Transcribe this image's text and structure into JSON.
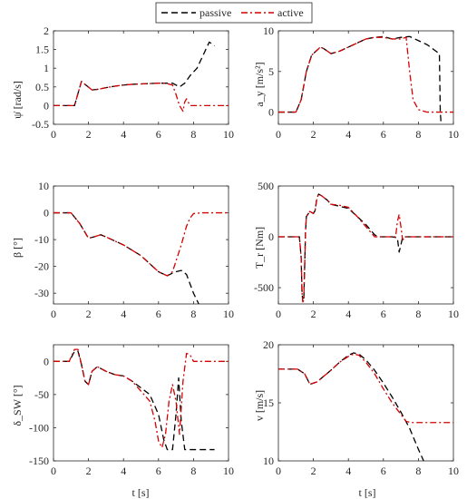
{
  "legend": {
    "entries": [
      {
        "label": "passive",
        "color": "#000000",
        "dash": "dashed"
      },
      {
        "label": "active",
        "color": "#d40000",
        "dash": "dashdot"
      }
    ]
  },
  "chart_data": [
    {
      "id": "yaw-rate",
      "type": "line",
      "ylabel": "ψ̇ [rad/s]",
      "xlabel": "",
      "xlim": [
        0,
        10
      ],
      "ylim": [
        -0.5,
        2
      ],
      "xticks": [
        0,
        2,
        4,
        6,
        8,
        10
      ],
      "yticks": [
        -0.5,
        0,
        0.5,
        1,
        1.5,
        2
      ],
      "series": [
        {
          "name": "passive",
          "x": [
            0,
            1.2,
            1.6,
            1.85,
            2.2,
            2.6,
            3,
            3.5,
            4,
            4.5,
            5,
            5.5,
            6,
            6.4,
            6.8,
            7.2,
            7.5,
            7.8,
            8.2,
            8.6,
            8.9,
            9.2
          ],
          "y": [
            0,
            0,
            0.65,
            0.55,
            0.42,
            0.44,
            0.48,
            0.52,
            0.55,
            0.57,
            0.58,
            0.59,
            0.6,
            0.6,
            0.6,
            0.5,
            0.6,
            0.8,
            1.0,
            1.4,
            1.7,
            1.6
          ]
        },
        {
          "name": "active",
          "x": [
            0,
            1.2,
            1.6,
            1.85,
            2.2,
            2.6,
            3,
            3.5,
            4,
            4.5,
            5,
            5.5,
            6,
            6.4,
            6.8,
            7.0,
            7.2,
            7.4,
            7.5,
            7.6,
            7.8,
            8,
            10
          ],
          "y": [
            0,
            0,
            0.65,
            0.55,
            0.42,
            0.44,
            0.48,
            0.52,
            0.55,
            0.57,
            0.58,
            0.59,
            0.6,
            0.6,
            0.55,
            0.3,
            0,
            -0.15,
            0.1,
            0.18,
            0,
            0,
            0
          ]
        }
      ]
    },
    {
      "id": "lat-accel",
      "type": "line",
      "ylabel": "a_y [m/s²]",
      "xlabel": "",
      "xlim": [
        0,
        10
      ],
      "ylim": [
        -1.5,
        10
      ],
      "xticks": [
        0,
        2,
        4,
        6,
        8,
        10
      ],
      "yticks": [
        0,
        5,
        10
      ],
      "series": [
        {
          "name": "passive",
          "x": [
            0,
            1,
            1.3,
            1.6,
            1.9,
            2.2,
            2.4,
            2.6,
            3,
            3.5,
            4,
            4.5,
            5,
            5.5,
            6,
            6.5,
            7,
            7.5,
            8,
            8.5,
            9,
            9.2,
            9.25,
            9.3
          ],
          "y": [
            0,
            0,
            1.5,
            5,
            7,
            7.6,
            8,
            7.8,
            7.2,
            7.5,
            8,
            8.5,
            9,
            9.2,
            9.3,
            9,
            9.2,
            9.3,
            8.8,
            8.3,
            7.5,
            7.2,
            0,
            -1.5
          ]
        },
        {
          "name": "active",
          "x": [
            0,
            1,
            1.3,
            1.6,
            1.9,
            2.2,
            2.4,
            2.6,
            3,
            3.5,
            4,
            4.5,
            5,
            5.5,
            6,
            6.5,
            7,
            7.3,
            7.5,
            7.7,
            8,
            8.5,
            10
          ],
          "y": [
            0,
            0,
            1.5,
            5,
            7,
            7.6,
            8,
            7.8,
            7.2,
            7.5,
            8,
            8.5,
            9,
            9.2,
            9.2,
            9,
            9,
            9.2,
            5,
            1.5,
            0.3,
            0,
            0
          ]
        }
      ]
    },
    {
      "id": "sideslip",
      "type": "line",
      "ylabel": "β [°]",
      "xlabel": "",
      "xlim": [
        0,
        10
      ],
      "ylim": [
        -34,
        10
      ],
      "xticks": [
        0,
        2,
        4,
        6,
        8,
        10
      ],
      "yticks": [
        -30,
        -20,
        -10,
        0,
        10
      ],
      "series": [
        {
          "name": "passive",
          "x": [
            0,
            1,
            1.5,
            2,
            2.3,
            2.7,
            3,
            4,
            5,
            5.5,
            6,
            6.5,
            6.8,
            7,
            7.3,
            7.6,
            8,
            8.3
          ],
          "y": [
            0,
            0,
            -4,
            -9.5,
            -9,
            -8.2,
            -9,
            -12,
            -16,
            -19,
            -22,
            -23.5,
            -22.5,
            -22,
            -21.5,
            -23,
            -30,
            -34
          ]
        },
        {
          "name": "active",
          "x": [
            0,
            1,
            1.5,
            2,
            2.3,
            2.7,
            3,
            4,
            5,
            5.5,
            6,
            6.5,
            6.8,
            7,
            7.3,
            7.6,
            7.8,
            8,
            8.5,
            10
          ],
          "y": [
            0,
            0,
            -4,
            -9.5,
            -9,
            -8.2,
            -9,
            -12,
            -16,
            -19,
            -22,
            -23.5,
            -22,
            -18,
            -12,
            -5,
            -2,
            -0.3,
            0,
            0
          ]
        }
      ]
    },
    {
      "id": "rear-torque",
      "type": "line",
      "ylabel": "T_r [Nm]",
      "xlabel": "",
      "xlim": [
        0,
        10
      ],
      "ylim": [
        -660,
        500
      ],
      "xticks": [
        0,
        2,
        4,
        6,
        8,
        10
      ],
      "yticks": [
        -500,
        0,
        500
      ],
      "series": [
        {
          "name": "passive",
          "x": [
            0,
            1.2,
            1.3,
            1.35,
            1.4,
            1.45,
            1.5,
            1.55,
            1.6,
            1.8,
            2,
            2.1,
            2.2,
            2.3,
            2.5,
            2.8,
            3,
            3.5,
            4,
            4.5,
            5,
            5.5,
            5.7,
            6,
            6.5,
            6.8,
            6.9,
            7,
            7.1,
            10
          ],
          "y": [
            0,
            0,
            -200,
            -550,
            -640,
            -620,
            -300,
            50,
            200,
            250,
            230,
            260,
            380,
            420,
            400,
            360,
            320,
            300,
            280,
            200,
            120,
            20,
            0,
            0,
            0,
            -10,
            -150,
            -80,
            0,
            0
          ]
        },
        {
          "name": "active",
          "x": [
            0,
            1.2,
            1.3,
            1.35,
            1.4,
            1.45,
            1.5,
            1.55,
            1.6,
            1.8,
            2,
            2.1,
            2.2,
            2.3,
            2.5,
            2.8,
            3,
            3.5,
            4,
            4.5,
            5,
            5.5,
            6,
            6.5,
            6.7,
            6.8,
            6.9,
            7,
            7.1,
            7.3,
            10
          ],
          "y": [
            0,
            0,
            -200,
            -550,
            -640,
            -620,
            -300,
            50,
            200,
            250,
            230,
            260,
            380,
            420,
            400,
            360,
            320,
            310,
            290,
            200,
            100,
            0,
            0,
            0,
            0,
            150,
            220,
            100,
            -30,
            0,
            0
          ]
        }
      ]
    },
    {
      "id": "steer-angle",
      "type": "line",
      "ylabel": "δ_SW [°]",
      "xlabel": "t [s]",
      "xlim": [
        0,
        10
      ],
      "ylim": [
        -150,
        25
      ],
      "xticks": [
        0,
        2,
        4,
        6,
        8,
        10
      ],
      "yticks": [
        -150,
        -100,
        -50,
        0
      ],
      "series": [
        {
          "name": "passive",
          "x": [
            0,
            0.9,
            1.2,
            1.4,
            1.6,
            1.8,
            2,
            2.2,
            2.5,
            3,
            3.5,
            4,
            4.5,
            5,
            5.5,
            6,
            6.3,
            6.5,
            6.8,
            7,
            7.15,
            7.3,
            7.5,
            7.65,
            7.75,
            9.2
          ],
          "y": [
            0,
            0,
            15,
            15,
            -5,
            -30,
            -35,
            -15,
            -8,
            -15,
            -20,
            -22,
            -30,
            -40,
            -50,
            -80,
            -118,
            -133,
            -133,
            -80,
            -25,
            -90,
            -133,
            -133,
            -133,
            -133
          ]
        },
        {
          "name": "active",
          "x": [
            0,
            0.9,
            1.2,
            1.4,
            1.6,
            1.8,
            2,
            2.2,
            2.5,
            3,
            3.5,
            4,
            4.5,
            5,
            5.5,
            5.8,
            6,
            6.2,
            6.4,
            6.6,
            6.8,
            7,
            7.2,
            7.4,
            7.6,
            7.8,
            8,
            8.5,
            10
          ],
          "y": [
            0,
            0,
            18,
            18,
            -5,
            -30,
            -35,
            -15,
            -8,
            -15,
            -20,
            -22,
            -30,
            -45,
            -60,
            -90,
            -120,
            -130,
            -110,
            -60,
            -35,
            -60,
            -110,
            -30,
            12,
            10,
            0,
            0,
            0
          ]
        }
      ]
    },
    {
      "id": "velocity",
      "type": "line",
      "ylabel": "v [m/s]",
      "xlabel": "t [s]",
      "xlim": [
        0,
        10
      ],
      "ylim": [
        10,
        20
      ],
      "xticks": [
        0,
        2,
        4,
        6,
        8,
        10
      ],
      "yticks": [
        10,
        15,
        20
      ],
      "series": [
        {
          "name": "passive",
          "x": [
            0,
            1.1,
            1.5,
            1.8,
            2.2,
            3,
            3.5,
            4,
            4.3,
            4.6,
            5,
            5.5,
            6,
            6.5,
            7,
            7.5,
            8,
            8.3
          ],
          "y": [
            17.9,
            17.9,
            17.5,
            16.6,
            16.8,
            17.8,
            18.5,
            19.1,
            19.3,
            19.2,
            18.7,
            17.8,
            16.7,
            15.5,
            14.2,
            12.8,
            11,
            10
          ]
        },
        {
          "name": "active",
          "x": [
            0,
            1.1,
            1.5,
            1.8,
            2.2,
            3,
            3.5,
            4,
            4.3,
            4.6,
            5,
            5.5,
            6,
            6.5,
            7,
            7.3,
            7.6,
            10
          ],
          "y": [
            17.9,
            17.9,
            17.5,
            16.6,
            16.8,
            17.8,
            18.5,
            19,
            19.2,
            19.1,
            18.5,
            17.5,
            16.2,
            15,
            14,
            13.4,
            13.3,
            13.3
          ]
        }
      ]
    }
  ]
}
